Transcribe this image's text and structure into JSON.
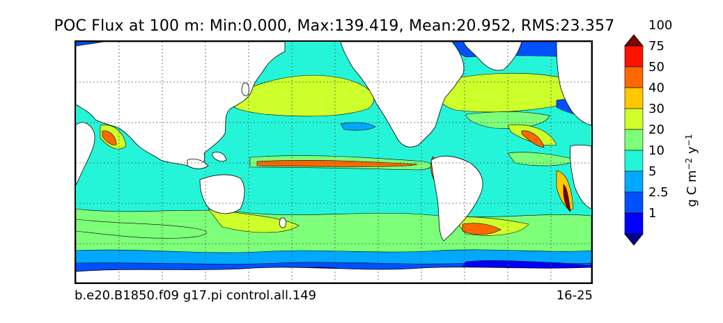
{
  "title": "POC Flux at 100 m: Min:0.000, Max:139.419, Mean:20.952, RMS:23.357",
  "footer": {
    "case_name": "b.e20.B1850.f09 g17.pi control.all.149",
    "year_range": "16-25"
  },
  "colorbar": {
    "unit_parts": [
      "g C m",
      "−2",
      " y",
      "−1"
    ],
    "extend": "both",
    "tick_labels": [
      "1",
      "2.5",
      "5",
      "10",
      "20",
      "30",
      "40",
      "50",
      "75",
      "100"
    ],
    "levels": [
      0,
      1,
      2.5,
      5,
      10,
      20,
      30,
      40,
      50,
      75,
      100,
      140
    ],
    "colors": [
      "#00008f",
      "#0000ff",
      "#0050ff",
      "#00a8ff",
      "#24f5d8",
      "#7dff7a",
      "#cdff2a",
      "#ffc800",
      "#ff6800",
      "#ff1200",
      "#800000"
    ]
  },
  "colors": {
    "land": "#ffffff",
    "coast": "#000000",
    "grid": "#555555"
  }
}
